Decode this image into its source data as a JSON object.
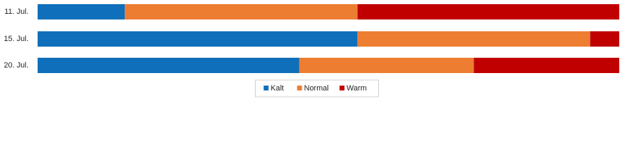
{
  "chart_data": {
    "type": "stacked-bar-horizontal",
    "categories": [
      "11. Jul.",
      "15. Jul.",
      "20. Jul."
    ],
    "series": [
      {
        "name": "Kalt",
        "color": "#0f6fba",
        "values": [
          15,
          55,
          45
        ]
      },
      {
        "name": "Normal",
        "color": "#ed7d31",
        "values": [
          40,
          40,
          30
        ]
      },
      {
        "name": "Warm",
        "color": "#c00000",
        "values": [
          45,
          5,
          25
        ]
      }
    ],
    "xlim": [
      0,
      100
    ],
    "legend": "bottom"
  }
}
